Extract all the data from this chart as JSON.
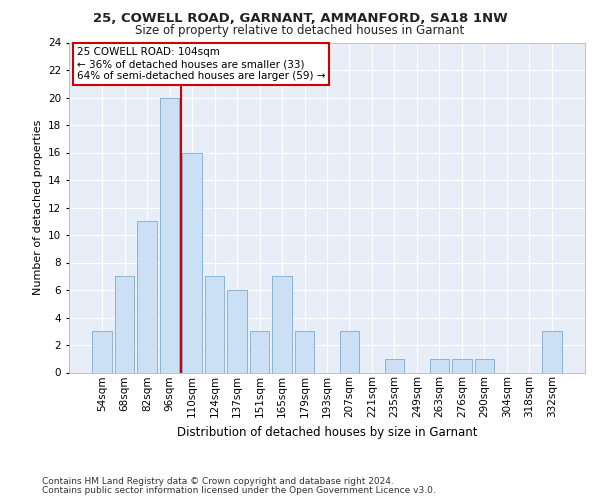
{
  "title1": "25, COWELL ROAD, GARNANT, AMMANFORD, SA18 1NW",
  "title2": "Size of property relative to detached houses in Garnant",
  "xlabel": "Distribution of detached houses by size in Garnant",
  "ylabel": "Number of detached properties",
  "footnote1": "Contains HM Land Registry data © Crown copyright and database right 2024.",
  "footnote2": "Contains public sector information licensed under the Open Government Licence v3.0.",
  "bin_labels": [
    "54sqm",
    "68sqm",
    "82sqm",
    "96sqm",
    "110sqm",
    "124sqm",
    "137sqm",
    "151sqm",
    "165sqm",
    "179sqm",
    "193sqm",
    "207sqm",
    "221sqm",
    "235sqm",
    "249sqm",
    "263sqm",
    "276sqm",
    "290sqm",
    "304sqm",
    "318sqm",
    "332sqm"
  ],
  "bar_values": [
    3,
    7,
    11,
    20,
    16,
    7,
    6,
    3,
    7,
    3,
    0,
    3,
    0,
    1,
    0,
    1,
    1,
    1,
    0,
    0,
    3
  ],
  "bar_color": "#cce0f5",
  "bar_edge_color": "#8ab4d8",
  "subject_line_color": "#cc0000",
  "annotation_line1": "25 COWELL ROAD: 104sqm",
  "annotation_line2": "← 36% of detached houses are smaller (33)",
  "annotation_line3": "64% of semi-detached houses are larger (59) →",
  "annotation_box_color": "#ffffff",
  "annotation_box_edge": "#cc0000",
  "ylim": [
    0,
    24
  ],
  "yticks": [
    0,
    2,
    4,
    6,
    8,
    10,
    12,
    14,
    16,
    18,
    20,
    22,
    24
  ],
  "fig_bg_color": "#ffffff",
  "plot_bg_color": "#e8eef7",
  "grid_color": "#ffffff",
  "title1_fontsize": 9.5,
  "title2_fontsize": 8.5,
  "ylabel_fontsize": 8,
  "xlabel_fontsize": 8.5,
  "tick_fontsize": 7.5,
  "footnote_fontsize": 6.5
}
